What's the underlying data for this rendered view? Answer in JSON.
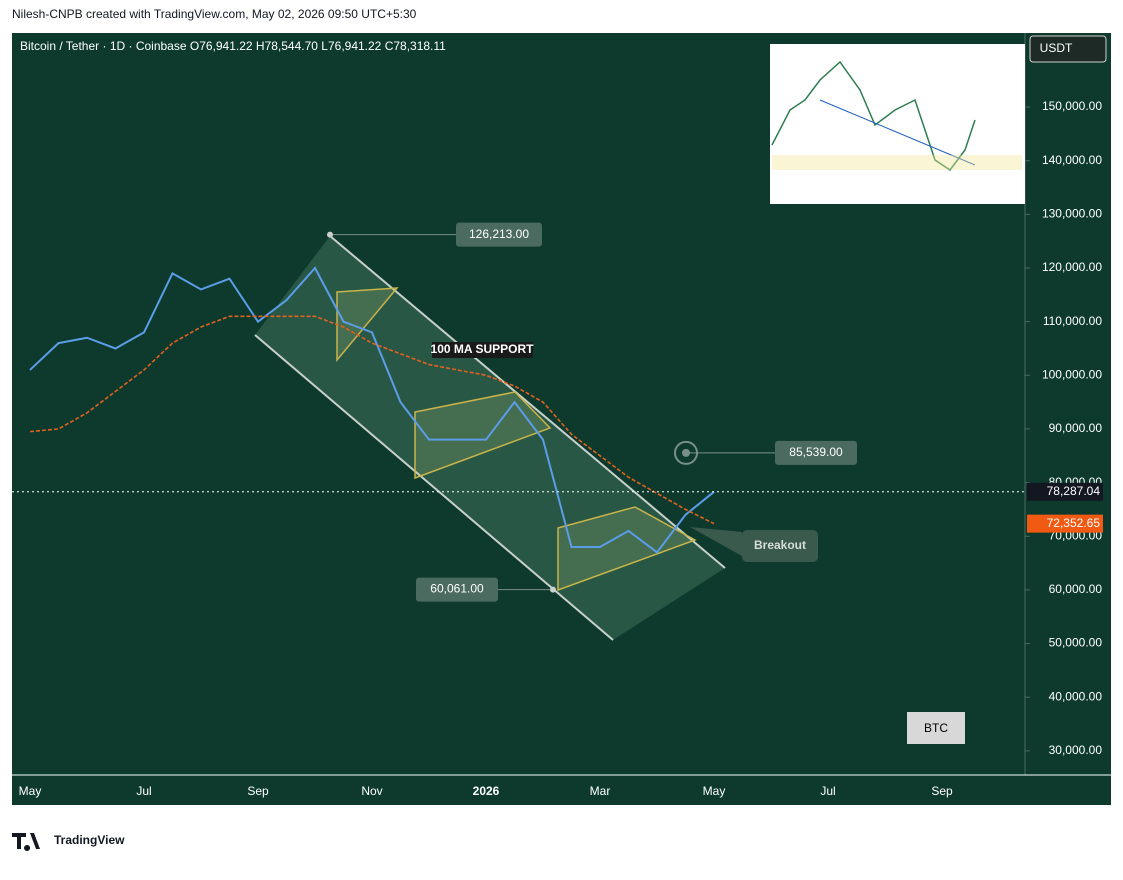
{
  "header": {
    "credit": "Nilesh-CNPB created with TradingView.com, May 02, 2026 09:50 UTC+5:30",
    "logo": "TradingView"
  },
  "chart_data": {
    "type": "line",
    "legend_text": "Bitcoin / Tether · 1D · Coinbase  O76,941.22  H78,544.70  L76,941.22  C78,318.11",
    "currency": "USDT",
    "watermark": "BTC",
    "categories": [
      "May",
      null,
      null,
      null,
      "Jul",
      null,
      null,
      null,
      "Sep",
      null,
      null,
      null,
      "Nov",
      null,
      null,
      null,
      "2026",
      null,
      null,
      null,
      "Mar",
      null,
      null,
      null,
      "May",
      null,
      null,
      null,
      "Jul",
      null,
      null,
      null,
      "Sep",
      null,
      null
    ],
    "series": [
      {
        "name": "Bitcoin / Tether",
        "color": "#5b9de8",
        "values": [
          101000,
          106000,
          107000,
          105000,
          108000,
          119000,
          116000,
          118000,
          110000,
          114000,
          120000,
          110000,
          108000,
          95000,
          88000,
          88000,
          88000,
          95000,
          88000,
          68000,
          68000,
          71000,
          67000,
          74000,
          78287.04,
          null,
          null,
          null,
          null,
          null,
          null,
          null,
          null,
          null,
          null
        ]
      },
      {
        "name": "100 MA",
        "color": "#e0621f",
        "values": [
          89500,
          90000,
          93000,
          97000,
          101000,
          106000,
          109000,
          111000,
          111000,
          111000,
          111000,
          109000,
          106000,
          104000,
          102000,
          101000,
          100000,
          98000,
          95000,
          89000,
          85000,
          81000,
          78000,
          75000,
          72352.65,
          null,
          null,
          null,
          null,
          null,
          null,
          null,
          null,
          null,
          null
        ]
      }
    ],
    "last_labels": [
      {
        "value": 78287.04,
        "label": "78,287.04"
      },
      {
        "value": 72352.65,
        "label": "72,352.65"
      }
    ],
    "ylim": [
      25500,
      163800
    ],
    "yticks": [
      {
        "value": 30000,
        "label": "30,000.00"
      },
      {
        "value": 40000,
        "label": "40,000.00"
      },
      {
        "value": 50000,
        "label": "50,000.00"
      },
      {
        "value": 60000,
        "label": "60,000.00"
      },
      {
        "value": 70000,
        "label": "70,000.00"
      },
      {
        "value": 80000,
        "label": "80,000.00"
      },
      {
        "value": 90000,
        "label": "90,000.00"
      },
      {
        "value": 100000,
        "label": "100,000.00"
      },
      {
        "value": 110000,
        "label": "110,000.00"
      },
      {
        "value": 120000,
        "label": "120,000.00"
      },
      {
        "value": 130000,
        "label": "130,000.00"
      },
      {
        "value": 140000,
        "label": "140,000.00"
      },
      {
        "value": 150000,
        "label": "150,000.00"
      }
    ],
    "annotations": [
      {
        "value": 126213,
        "label": "126,213.00"
      },
      {
        "value": 85539,
        "label": "85,539.00"
      },
      {
        "value": 60061,
        "label": "60,061.00"
      }
    ],
    "notes": [
      "100 MA SUPPORT",
      "Breakout"
    ]
  }
}
